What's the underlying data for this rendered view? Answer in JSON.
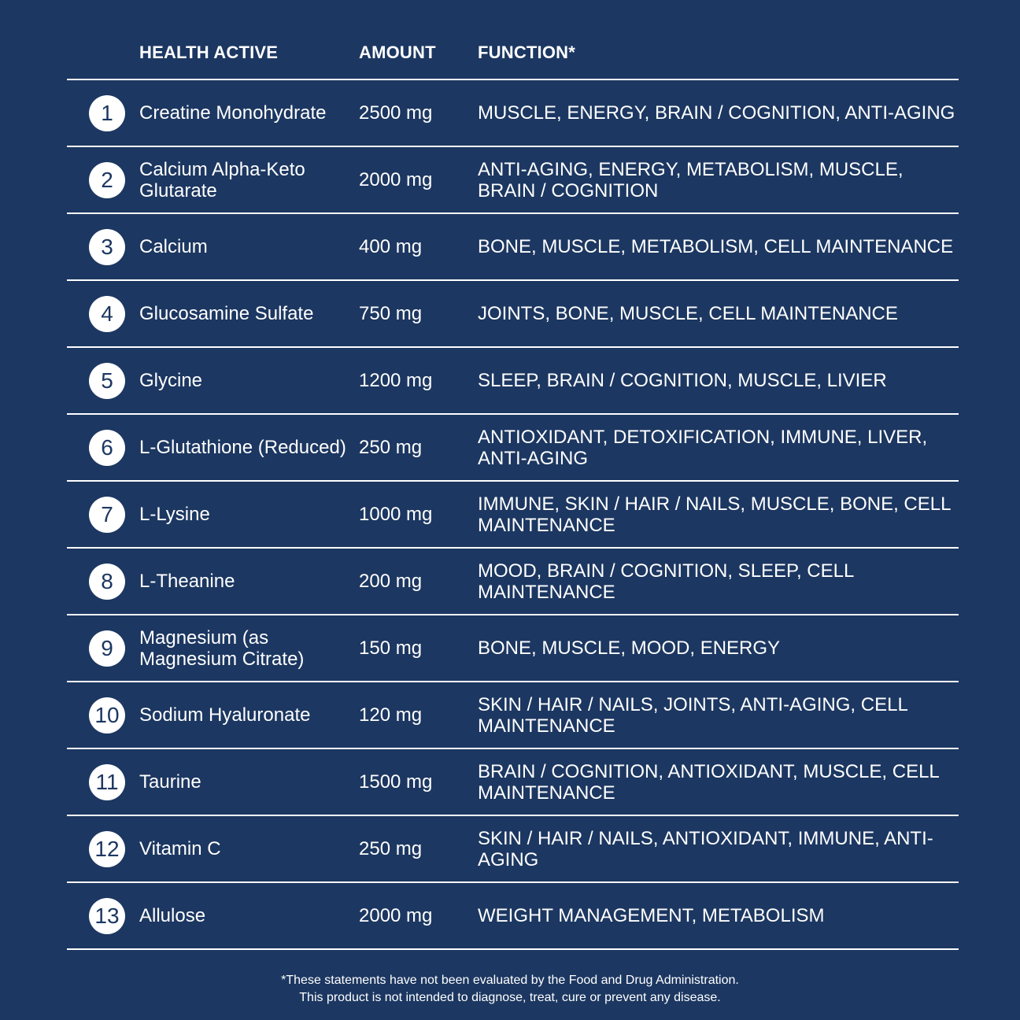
{
  "headers": {
    "active": "HEALTH ACTIVE",
    "amount": "AMOUNT",
    "function": "FUNCTION*"
  },
  "rows": [
    {
      "n": "1",
      "name": "Creatine Monohydrate",
      "amount": "2500 mg",
      "function": "MUSCLE, ENERGY, BRAIN / COGNITION, ANTI-AGING"
    },
    {
      "n": "2",
      "name": "Calcium Alpha-Keto Glutarate",
      "amount": "2000 mg",
      "function": "ANTI-AGING, ENERGY, METABOLISM, MUSCLE, BRAIN / COGNITION"
    },
    {
      "n": "3",
      "name": "Calcium",
      "amount": "400 mg",
      "function": "BONE, MUSCLE, METABOLISM, CELL MAINTENANCE"
    },
    {
      "n": "4",
      "name": "Glucosamine Sulfate",
      "amount": "750 mg",
      "function": "JOINTS, BONE, MUSCLE, CELL MAINTENANCE"
    },
    {
      "n": "5",
      "name": "Glycine",
      "amount": "1200 mg",
      "function": "SLEEP, BRAIN / COGNITION, MUSCLE, LIVIER"
    },
    {
      "n": "6",
      "name": "L-Glutathione (Reduced)",
      "amount": "250 mg",
      "function": "ANTIOXIDANT, DETOXIFICATION, IMMUNE, LIVER, ANTI-AGING"
    },
    {
      "n": "7",
      "name": "L-Lysine",
      "amount": "1000 mg",
      "function": "IMMUNE, SKIN / HAIR / NAILS, MUSCLE, BONE, CELL MAINTENANCE"
    },
    {
      "n": "8",
      "name": "L-Theanine",
      "amount": "200 mg",
      "function": "MOOD, BRAIN / COGNITION, SLEEP, CELL MAINTENANCE"
    },
    {
      "n": "9",
      "name": "Magnesium (as Magnesium Citrate)",
      "amount": "150 mg",
      "function": "BONE, MUSCLE, MOOD, ENERGY"
    },
    {
      "n": "10",
      "name": "Sodium Hyaluronate",
      "amount": "120 mg",
      "function": "SKIN / HAIR / NAILS, JOINTS, ANTI-AGING, CELL MAINTENANCE"
    },
    {
      "n": "11",
      "name": "Taurine",
      "amount": "1500 mg",
      "function": "BRAIN / COGNITION, ANTIOXIDANT, MUSCLE, CELL MAINTENANCE"
    },
    {
      "n": "12",
      "name": "Vitamin C",
      "amount": "250 mg",
      "function": "SKIN / HAIR / NAILS, ANTIOXIDANT, IMMUNE, ANTI-AGING"
    },
    {
      "n": "13",
      "name": "Allulose",
      "amount": "2000 mg",
      "function": "WEIGHT MANAGEMENT, METABOLISM"
    }
  ],
  "footnote": {
    "line1": "*These statements have not been evaluated by the Food and Drug Administration.",
    "line2": "This product is not intended to diagnose, treat, cure or prevent any disease."
  },
  "colors": {
    "background": "#1c3761",
    "text": "#ffffff"
  }
}
